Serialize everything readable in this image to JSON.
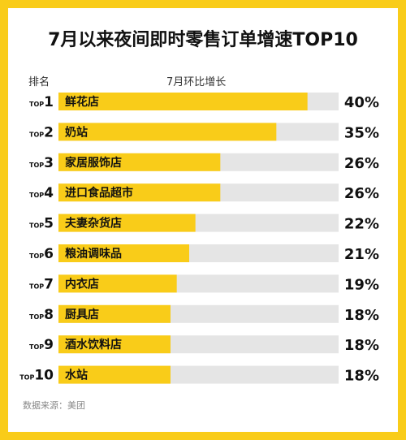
{
  "page": {
    "title": "7月以来夜间即时零售订单增速TOP10",
    "header_rank": "排名",
    "header_metric": "7月环比增长",
    "source": "数据来源：美团",
    "colors": {
      "background": "#F9CC19",
      "bar": "#F9CC19",
      "track": "#E5E5E5",
      "text": "#111111"
    }
  },
  "chart_data": {
    "type": "bar",
    "orientation": "horizontal",
    "title": "7月以来夜间即时零售订单增速TOP10",
    "xlabel": "7月环比增长",
    "ylabel": "排名",
    "xlim": [
      0,
      45
    ],
    "grid": false,
    "legend": "none",
    "rank_prefix": "TOP",
    "ranks": [
      "1",
      "2",
      "3",
      "4",
      "5",
      "6",
      "7",
      "8",
      "9",
      "10"
    ],
    "categories": [
      "鲜花店",
      "奶站",
      "家居服饰店",
      "进口食品超市",
      "夫妻杂货店",
      "粮油调味品",
      "内衣店",
      "厨具店",
      "酒水饮料店",
      "水站"
    ],
    "values": [
      40,
      35,
      26,
      26,
      22,
      21,
      19,
      18,
      18,
      18
    ],
    "value_labels": [
      "40%",
      "35%",
      "26%",
      "26%",
      "22%",
      "21%",
      "19%",
      "18%",
      "18%",
      "18%"
    ]
  }
}
